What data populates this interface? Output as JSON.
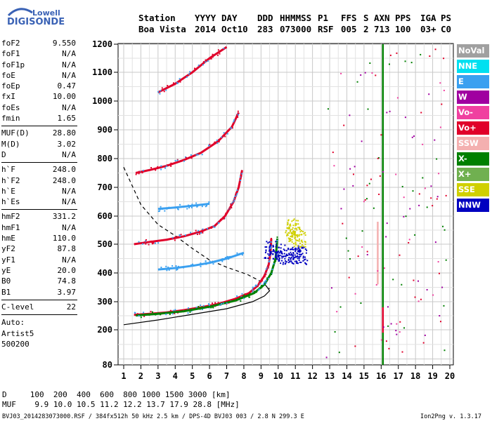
{
  "logo": {
    "brand": "Lowell",
    "product": "DIGISONDE"
  },
  "header": {
    "columns": [
      {
        "name": "Station",
        "value": "Boa Vista"
      },
      {
        "name": "YYYY",
        "value": "2014"
      },
      {
        "name": "DAY",
        "value": "Oct10"
      },
      {
        "name": "DDD",
        "value": "283"
      },
      {
        "name": "HHMMSS",
        "value": "073000"
      },
      {
        "name": "P1",
        "value": "RSF"
      },
      {
        "name": "FFS",
        "value": "005"
      },
      {
        "name": "S",
        "value": "2"
      },
      {
        "name": "AXN",
        "value": "713"
      },
      {
        "name": "PPS",
        "value": "100"
      },
      {
        "name": "IGA",
        "value": "03+"
      },
      {
        "name": "PS",
        "value": "C0"
      }
    ]
  },
  "params": {
    "group1": [
      {
        "label": "foF2",
        "value": "9.550"
      },
      {
        "label": "foF1",
        "value": "N/A"
      },
      {
        "label": "foF1p",
        "value": "N/A"
      },
      {
        "label": "foE",
        "value": "N/A"
      },
      {
        "label": "foEp",
        "value": "0.47"
      },
      {
        "label": "fxI",
        "value": "10.00"
      },
      {
        "label": "foEs",
        "value": "N/A"
      },
      {
        "label": "fmin",
        "value": "1.65"
      }
    ],
    "group2": [
      {
        "label": "MUF(D)",
        "value": "28.80"
      },
      {
        "label": "M(D)",
        "value": "3.02"
      },
      {
        "label": "D",
        "value": "N/A"
      }
    ],
    "group3": [
      {
        "label": "h`F",
        "value": "248.0"
      },
      {
        "label": "h`F2",
        "value": "248.0"
      },
      {
        "label": "h`E",
        "value": "N/A"
      },
      {
        "label": "h`Es",
        "value": "N/A"
      }
    ],
    "group4": [
      {
        "label": "hmF2",
        "value": "331.2"
      },
      {
        "label": "hmF1",
        "value": "N/A"
      },
      {
        "label": "hmE",
        "value": "110.0"
      },
      {
        "label": "yF2",
        "value": "87.8"
      },
      {
        "label": "yF1",
        "value": "N/A"
      },
      {
        "label": "yE",
        "value": "20.0"
      },
      {
        "label": "B0",
        "value": "74.8"
      },
      {
        "label": "B1",
        "value": "3.97"
      }
    ],
    "group5": [
      {
        "label": "C-level",
        "value": "22"
      }
    ],
    "auto_lines": [
      "Auto:",
      "Artist5",
      "500200"
    ]
  },
  "legend": [
    {
      "label": "NoVal",
      "color": "#a0a0a0"
    },
    {
      "label": "NNE",
      "color": "#00e0f0"
    },
    {
      "label": "E",
      "color": "#3aa0f0"
    },
    {
      "label": "W",
      "color": "#a000a0"
    },
    {
      "label": "Vo-",
      "color": "#f040a0"
    },
    {
      "label": "Vo+",
      "color": "#e0002a"
    },
    {
      "label": "SSW",
      "color": "#f4b0b0"
    },
    {
      "label": "X-",
      "color": "#008000"
    },
    {
      "label": "X+",
      "color": "#70b050"
    },
    {
      "label": "SSE",
      "color": "#d0d000"
    },
    {
      "label": "NNW",
      "color": "#0000c0"
    }
  ],
  "footer": {
    "d_line": "D     100  200  400  600  800 1000 1500 3000 [km]",
    "muf_line": "MUF    9.9 10.0 10.5 11.2 12.2 13.7 17.9 28.8 [MHz]",
    "file_line": "BVJ03_2014283073000.RSF / 384fx512h 50 kHz 2.5 km / DPS-4D BVJ03 003 / 2.8 N 299.3 E",
    "version": "Ion2Png v. 1.3.17"
  },
  "chart_data": {
    "type": "scatter",
    "title": "",
    "xlabel": "",
    "ylabel": "",
    "xlim": [
      1,
      20
    ],
    "ylim": [
      80,
      1200
    ],
    "x_ticks": [
      1,
      2,
      3,
      4,
      5,
      6,
      7,
      8,
      9,
      10,
      11,
      12,
      13,
      14,
      15,
      16,
      17,
      18,
      19,
      20
    ],
    "y_ticks": [
      80,
      200,
      300,
      400,
      500,
      600,
      700,
      800,
      900,
      1000,
      1100,
      1200
    ],
    "grid": true,
    "series": [
      {
        "color_key": "Vo+",
        "kind": "trace",
        "points": [
          [
            1.6,
            253
          ],
          [
            2.5,
            257
          ],
          [
            3.5,
            262
          ],
          [
            4.5,
            270
          ],
          [
            5.5,
            280
          ],
          [
            6.5,
            292
          ],
          [
            7.5,
            310
          ],
          [
            8.3,
            330
          ],
          [
            8.8,
            355
          ],
          [
            9.2,
            390
          ],
          [
            9.45,
            430
          ],
          [
            9.55,
            470
          ],
          [
            9.6,
            520
          ]
        ]
      },
      {
        "color_key": "X-",
        "kind": "trace",
        "points": [
          [
            1.7,
            251
          ],
          [
            3,
            257
          ],
          [
            4.5,
            266
          ],
          [
            6,
            282
          ],
          [
            7.5,
            304
          ],
          [
            8.6,
            330
          ],
          [
            9.2,
            360
          ],
          [
            9.6,
            400
          ],
          [
            9.85,
            450
          ],
          [
            9.95,
            520
          ]
        ]
      },
      {
        "color_key": "Vo+",
        "kind": "trace",
        "points": [
          [
            1.6,
            500
          ],
          [
            2.5,
            508
          ],
          [
            3.5,
            516
          ],
          [
            4.5,
            528
          ],
          [
            5.5,
            545
          ],
          [
            6.3,
            565
          ],
          [
            6.9,
            600
          ],
          [
            7.4,
            650
          ],
          [
            7.7,
            700
          ],
          [
            7.9,
            760
          ]
        ]
      },
      {
        "color_key": "Vo+",
        "kind": "trace",
        "points": [
          [
            1.7,
            750
          ],
          [
            2.5,
            760
          ],
          [
            3.5,
            775
          ],
          [
            4.5,
            795
          ],
          [
            5.5,
            820
          ],
          [
            6.5,
            860
          ],
          [
            7.3,
            910
          ],
          [
            7.7,
            960
          ]
        ]
      },
      {
        "color_key": "Vo+",
        "kind": "trace",
        "points": [
          [
            3,
            1030
          ],
          [
            4,
            1060
          ],
          [
            5,
            1100
          ],
          [
            6,
            1150
          ],
          [
            7,
            1190
          ]
        ]
      },
      {
        "color_key": "E",
        "kind": "trace",
        "points": [
          [
            3,
            412
          ],
          [
            4,
            417
          ],
          [
            5,
            425
          ],
          [
            6,
            435
          ],
          [
            7,
            450
          ],
          [
            8,
            470
          ]
        ]
      },
      {
        "color_key": "E",
        "kind": "trace",
        "points": [
          [
            3,
            625
          ],
          [
            4,
            630
          ],
          [
            5,
            636
          ],
          [
            6,
            643
          ]
        ]
      },
      {
        "color_key": "NNW",
        "kind": "cluster",
        "points": [
          [
            9.6,
            480
          ],
          [
            10,
            470
          ],
          [
            10.5,
            460
          ],
          [
            11,
            465
          ],
          [
            11.3,
            460
          ]
        ]
      },
      {
        "color_key": "SSE",
        "kind": "cluster",
        "points": [
          [
            10.8,
            560
          ],
          [
            11,
            540
          ],
          [
            11.2,
            520
          ]
        ]
      },
      {
        "color_key": "X-",
        "kind": "vertical",
        "points": [
          [
            16.1,
            80
          ],
          [
            16.1,
            1200
          ]
        ]
      },
      {
        "color_key": "Vo+",
        "kind": "vertical",
        "points": [
          [
            16.1,
            190
          ],
          [
            16.1,
            280
          ]
        ]
      },
      {
        "color_key": "SSW",
        "kind": "vertical",
        "points": [
          [
            15.8,
            360
          ],
          [
            15.8,
            580
          ]
        ]
      }
    ],
    "profile_solid": [
      [
        1,
        218
      ],
      [
        3,
        235
      ],
      [
        5,
        255
      ],
      [
        7,
        275
      ],
      [
        8.5,
        300
      ],
      [
        9.2,
        320
      ],
      [
        9.5,
        338
      ],
      [
        9.3,
        355
      ]
    ],
    "profile_dashed": [
      [
        1,
        770
      ],
      [
        2,
        640
      ],
      [
        3,
        570
      ],
      [
        4,
        530
      ],
      [
        5,
        485
      ],
      [
        6,
        445
      ],
      [
        7,
        420
      ],
      [
        8.2,
        395
      ],
      [
        9,
        370
      ],
      [
        9.5,
        345
      ]
    ]
  }
}
